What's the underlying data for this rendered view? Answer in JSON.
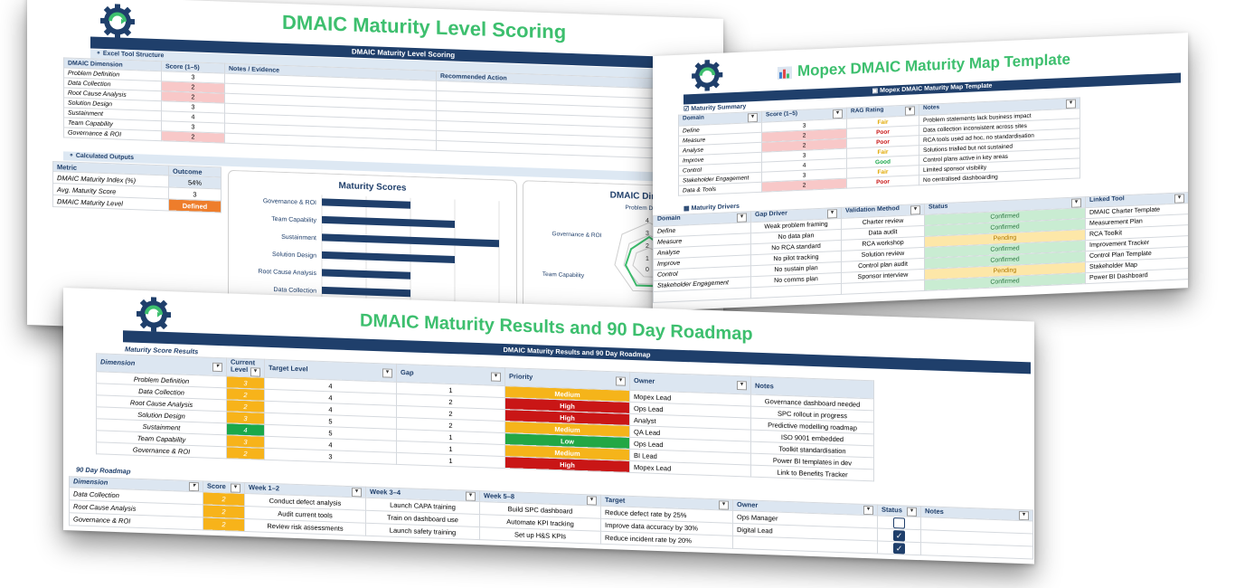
{
  "sheet1": {
    "title": "DMAIC Maturity Level Scoring",
    "bar": "DMAIC Maturity Level Scoring",
    "section1": "Excel Tool Structure",
    "headers": [
      "DMAIC Dimension",
      "Score (1–5)",
      "Notes / Evidence",
      "Recommended Action"
    ],
    "rows": [
      {
        "dim": "Problem Definition",
        "score": "3"
      },
      {
        "dim": "Data Collection",
        "score": "2"
      },
      {
        "dim": "Root Cause Analysis",
        "score": "2"
      },
      {
        "dim": "Solution Design",
        "score": "3"
      },
      {
        "dim": "Sustainment",
        "score": "4"
      },
      {
        "dim": "Team Capability",
        "score": "3"
      },
      {
        "dim": "Governance & ROI",
        "score": "2"
      }
    ],
    "section2": "Calculated Outputs",
    "out_headers": [
      "Metric",
      "Outcome"
    ],
    "outputs": [
      {
        "metric": "DMAIC Maturity Index (%)",
        "value": "54%"
      },
      {
        "metric": "Avg. Maturity Score",
        "value": "3"
      },
      {
        "metric": "DMAIC Maturity Level",
        "value": "Defined"
      }
    ],
    "chart_title": "Maturity Scores",
    "radar_title": "DMAIC Dimension",
    "radar_labels": [
      "Problem Definition",
      "Governance & ROI",
      "Team Capability"
    ],
    "radar_ticks": [
      "4",
      "3",
      "2",
      "1",
      "0"
    ]
  },
  "chart_data": {
    "type": "bar",
    "title": "Maturity Scores",
    "categories": [
      "Governance & ROI",
      "Team Capability",
      "Sustainment",
      "Solution Design",
      "Root Cause Analysis",
      "Data Collection"
    ],
    "values": [
      2,
      3,
      4,
      3,
      2,
      2
    ],
    "xlim": [
      0,
      4
    ]
  },
  "sheet2": {
    "title": "Mopex DMAIC Maturity Map Template",
    "bar": "Mopex DMAIC Maturity Map Template",
    "section1": "Maturity Summary",
    "headers": [
      "Domain",
      "Score (1–5)",
      "RAG Rating",
      "Notes"
    ],
    "rows": [
      {
        "domain": "Define",
        "score": "3",
        "rag": "Fair",
        "notes": "Problem statements lack business impact"
      },
      {
        "domain": "Measure",
        "score": "2",
        "rag": "Poor",
        "notes": "Data collection inconsistent across sites"
      },
      {
        "domain": "Analyse",
        "score": "2",
        "rag": "Poor",
        "notes": "RCA tools used ad hoc, no standardisation"
      },
      {
        "domain": "Improve",
        "score": "3",
        "rag": "Fair",
        "notes": "Solutions trialled but not sustained"
      },
      {
        "domain": "Control",
        "score": "4",
        "rag": "Good",
        "notes": "Control plans active in key areas"
      },
      {
        "domain": "Stakeholder Engagement",
        "score": "3",
        "rag": "Fair",
        "notes": "Limited sponsor visibility"
      },
      {
        "domain": "Data & Tools",
        "score": "2",
        "rag": "Poor",
        "notes": "No centralised dashboarding"
      }
    ],
    "section2": "Maturity Drivers",
    "drv_headers": [
      "Domain",
      "Gap Driver",
      "Validation Method",
      "Status",
      "Linked Tool"
    ],
    "drivers": [
      {
        "domain": "Define",
        "gap": "Weak problem framing",
        "method": "Charter review",
        "status": "Confirmed",
        "tool": "DMAIC Charter Template"
      },
      {
        "domain": "Measure",
        "gap": "No data plan",
        "method": "Data audit",
        "status": "Confirmed",
        "tool": "Measurement Plan"
      },
      {
        "domain": "Analyse",
        "gap": "No RCA standard",
        "method": "RCA workshop",
        "status": "Pending",
        "tool": "RCA Toolkit"
      },
      {
        "domain": "Improve",
        "gap": "No pilot tracking",
        "method": "Solution review",
        "status": "Confirmed",
        "tool": "Improvement Tracker"
      },
      {
        "domain": "Control",
        "gap": "No sustain plan",
        "method": "Control plan audit",
        "status": "Confirmed",
        "tool": "Control Plan Template"
      },
      {
        "domain": "Stakeholder Engagement",
        "gap": "No comms plan",
        "method": "Sponsor interview",
        "status": "Pending",
        "tool": "Stakeholder Map"
      },
      {
        "domain": "",
        "gap": "",
        "method": "",
        "status": "Confirmed",
        "tool": "Power BI Dashboard"
      }
    ]
  },
  "sheet3": {
    "title": "DMAIC Maturity Results and 90 Day Roadmap",
    "bar": "DMAIC Maturity Results and 90 Day Roadmap",
    "section1": "Maturity Score Results",
    "headers": [
      "Dimension",
      "Current Level",
      "Target Level",
      "Gap",
      "Priority",
      "Owner",
      "Notes"
    ],
    "rows": [
      {
        "dim": "Problem Definition",
        "cur": "3",
        "target": "4",
        "gap": "1",
        "priority": "Medium",
        "owner": "Mopex Lead",
        "notes": "Governance dashboard needed"
      },
      {
        "dim": "Data Collection",
        "cur": "2",
        "target": "4",
        "gap": "2",
        "priority": "High",
        "owner": "Ops Lead",
        "notes": "SPC rollout in progress"
      },
      {
        "dim": "Root Cause Analysis",
        "cur": "2",
        "target": "4",
        "gap": "2",
        "priority": "High",
        "owner": "Analyst",
        "notes": "Predictive modelling roadmap"
      },
      {
        "dim": "Solution Design",
        "cur": "3",
        "target": "5",
        "gap": "2",
        "priority": "Medium",
        "owner": "QA Lead",
        "notes": "ISO 9001 embedded"
      },
      {
        "dim": "Sustainment",
        "cur": "4",
        "target": "5",
        "gap": "1",
        "priority": "Low",
        "owner": "Ops Lead",
        "notes": "Toolkit standardisation"
      },
      {
        "dim": "Team Capability",
        "cur": "3",
        "target": "4",
        "gap": "1",
        "priority": "Medium",
        "owner": "BI Lead",
        "notes": "Power BI templates in dev"
      },
      {
        "dim": "Governance & ROI",
        "cur": "2",
        "target": "3",
        "gap": "1",
        "priority": "High",
        "owner": "Mopex Lead",
        "notes": "Link to Benefits Tracker"
      }
    ],
    "section2": "90 Day Roadmap",
    "rm_headers": [
      "Dimension",
      "Score",
      "Week 1–2",
      "Week 3–4",
      "Week 5–8",
      "Target",
      "Owner",
      "Status",
      "Notes"
    ],
    "roadmap": [
      {
        "dim": "Data Collection",
        "score": "2",
        "w12": "Conduct defect analysis",
        "w34": "Launch CAPA training",
        "w58": "Build SPC dashboard",
        "target": "Reduce defect rate by 25%",
        "owner": "Ops Manager",
        "checked": false
      },
      {
        "dim": "Root Cause Analysis",
        "score": "2",
        "w12": "Audit current tools",
        "w34": "Train on dashboard use",
        "w58": "Automate KPI tracking",
        "target": "Improve data accuracy by 30%",
        "owner": "Digital Lead",
        "checked": true
      },
      {
        "dim": "Governance & ROI",
        "score": "2",
        "w12": "Review risk assessments",
        "w34": "Launch safety training",
        "w58": "Set up H&S KPIs",
        "target": "Reduce incident rate by 20%",
        "owner": "",
        "checked": true
      }
    ]
  },
  "colors": {
    "navy": "#1f3f6b",
    "green_title": "#3dbf6e",
    "high": "#c91616",
    "medium": "#f5b41a",
    "low": "#22a745"
  },
  "icons": [
    "gear-logo-icon",
    "bar-chart-icon",
    "dropdown-arrow-icon",
    "checkbox-icon"
  ]
}
